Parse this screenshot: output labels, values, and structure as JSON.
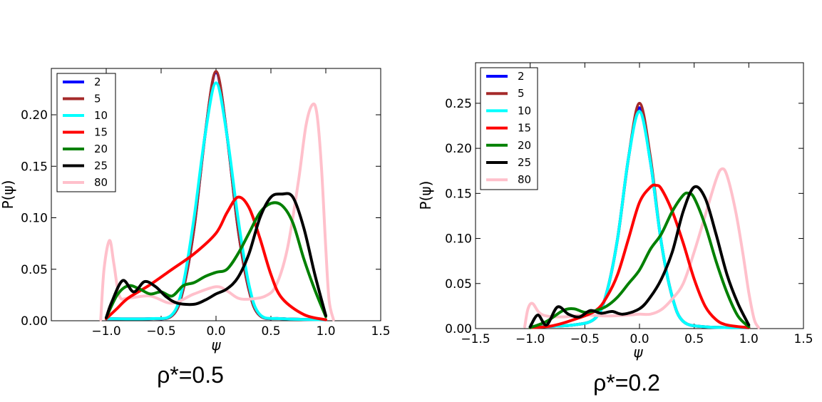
{
  "colors": {
    "2": "#0000ff",
    "5": "#a52a2a",
    "10": "#00ffff",
    "15": "#ff0000",
    "20": "#008000",
    "25": "#000000",
    "80": "#ffc0cb"
  },
  "chart_data": [
    {
      "type": "line",
      "title": "ρ*=0.5",
      "xlabel": "ψ",
      "ylabel": "P(ψ)",
      "xlim": [
        -1.5,
        1.5
      ],
      "ylim": [
        0,
        0.245
      ],
      "xticks": [
        -1.0,
        -0.5,
        0.0,
        0.5,
        1.0,
        1.5
      ],
      "xtick_labels": [
        "−1.0",
        "−0.5",
        "0.0",
        "0.5",
        "1.0",
        "1.5"
      ],
      "yticks": [
        0.0,
        0.05,
        0.1,
        0.15,
        0.2
      ],
      "ytick_labels": [
        "0.00",
        "0.05",
        "0.10",
        "0.15",
        "0.20"
      ],
      "legend": [
        "2",
        "5",
        "10",
        "15",
        "20",
        "25",
        "80"
      ],
      "legend_position": "top-left",
      "series": [
        {
          "name": "2",
          "x": [
            -1.0,
            -0.6,
            -0.4,
            -0.3,
            -0.2,
            -0.1,
            0.0,
            0.1,
            0.2,
            0.3,
            0.4,
            0.6,
            1.0
          ],
          "y": [
            0.002,
            0.002,
            0.005,
            0.03,
            0.09,
            0.18,
            0.241,
            0.18,
            0.09,
            0.03,
            0.005,
            0.002,
            0.001
          ]
        },
        {
          "name": "5",
          "x": [
            -1.0,
            -0.6,
            -0.4,
            -0.3,
            -0.2,
            -0.1,
            0.0,
            0.1,
            0.2,
            0.3,
            0.4,
            0.6,
            1.0
          ],
          "y": [
            0.002,
            0.002,
            0.005,
            0.03,
            0.09,
            0.18,
            0.242,
            0.18,
            0.09,
            0.03,
            0.005,
            0.002,
            0.001
          ]
        },
        {
          "name": "10",
          "x": [
            -1.0,
            -0.6,
            -0.4,
            -0.3,
            -0.2,
            -0.1,
            0.0,
            0.1,
            0.2,
            0.3,
            0.4,
            0.6,
            1.0
          ],
          "y": [
            0.002,
            0.002,
            0.006,
            0.035,
            0.1,
            0.18,
            0.231,
            0.18,
            0.1,
            0.035,
            0.006,
            0.002,
            0.001
          ]
        },
        {
          "name": "15",
          "x": [
            -1.0,
            -0.9,
            -0.8,
            -0.6,
            -0.4,
            -0.2,
            0.0,
            0.1,
            0.2,
            0.3,
            0.4,
            0.5,
            0.6,
            0.8,
            1.0
          ],
          "y": [
            0.002,
            0.012,
            0.022,
            0.035,
            0.05,
            0.065,
            0.085,
            0.105,
            0.12,
            0.11,
            0.08,
            0.045,
            0.022,
            0.006,
            0.001
          ]
        },
        {
          "name": "20",
          "x": [
            -1.0,
            -0.9,
            -0.8,
            -0.7,
            -0.6,
            -0.5,
            -0.4,
            -0.3,
            -0.2,
            -0.1,
            0.0,
            0.1,
            0.2,
            0.3,
            0.4,
            0.5,
            0.6,
            0.7,
            0.8,
            0.9,
            1.0
          ],
          "y": [
            0.003,
            0.025,
            0.034,
            0.031,
            0.026,
            0.028,
            0.024,
            0.034,
            0.037,
            0.043,
            0.047,
            0.05,
            0.065,
            0.085,
            0.105,
            0.114,
            0.112,
            0.095,
            0.06,
            0.03,
            0.004
          ]
        },
        {
          "name": "25",
          "x": [
            -1.0,
            -0.95,
            -0.85,
            -0.75,
            -0.65,
            -0.55,
            -0.45,
            -0.35,
            -0.2,
            -0.1,
            0.0,
            0.1,
            0.2,
            0.3,
            0.4,
            0.5,
            0.6,
            0.7,
            0.8,
            0.9,
            1.0
          ],
          "y": [
            0.003,
            0.018,
            0.039,
            0.028,
            0.038,
            0.033,
            0.023,
            0.017,
            0.016,
            0.02,
            0.026,
            0.031,
            0.042,
            0.065,
            0.1,
            0.12,
            0.123,
            0.12,
            0.09,
            0.045,
            0.005
          ]
        },
        {
          "name": "80",
          "x": [
            -1.05,
            -1.02,
            -0.97,
            -0.93,
            -0.88,
            -0.8,
            -0.6,
            -0.4,
            -0.2,
            0.0,
            0.1,
            0.2,
            0.3,
            0.45,
            0.55,
            0.65,
            0.75,
            0.82,
            0.88,
            0.92,
            0.96,
            1.0,
            1.03,
            1.07
          ],
          "y": [
            0.001,
            0.05,
            0.078,
            0.055,
            0.024,
            0.022,
            0.024,
            0.017,
            0.026,
            0.033,
            0.029,
            0.022,
            0.021,
            0.024,
            0.035,
            0.07,
            0.135,
            0.19,
            0.21,
            0.2,
            0.15,
            0.07,
            0.02,
            0.001
          ]
        }
      ]
    },
    {
      "type": "line",
      "title": "ρ*=0.2",
      "xlabel": "ψ",
      "ylabel": "P(ψ)",
      "xlim": [
        -1.5,
        1.5
      ],
      "ylim": [
        0,
        0.295
      ],
      "xticks": [
        -1.5,
        -1.0,
        -0.5,
        0.0,
        0.5,
        1.0,
        1.5
      ],
      "xtick_labels": [
        "−1.5",
        "−1.0",
        "−0.5",
        "0.0",
        "0.5",
        "1.0",
        "1.5"
      ],
      "yticks": [
        0.0,
        0.05,
        0.1,
        0.15,
        0.2,
        0.25
      ],
      "ytick_labels": [
        "0.00",
        "0.05",
        "0.10",
        "0.15",
        "0.20",
        "0.25"
      ],
      "legend": [
        "2",
        "5",
        "10",
        "15",
        "20",
        "25",
        "80"
      ],
      "legend_position": "top-left",
      "series": [
        {
          "name": "2",
          "x": [
            -1.0,
            -0.6,
            -0.4,
            -0.3,
            -0.2,
            -0.1,
            0.0,
            0.1,
            0.2,
            0.3,
            0.4,
            0.6,
            1.0
          ],
          "y": [
            0.002,
            0.004,
            0.012,
            0.04,
            0.1,
            0.19,
            0.245,
            0.185,
            0.095,
            0.035,
            0.008,
            0.002,
            0.001
          ]
        },
        {
          "name": "5",
          "x": [
            -1.0,
            -0.6,
            -0.4,
            -0.3,
            -0.2,
            -0.1,
            0.0,
            0.1,
            0.2,
            0.3,
            0.4,
            0.6,
            1.0
          ],
          "y": [
            0.002,
            0.004,
            0.012,
            0.04,
            0.1,
            0.19,
            0.25,
            0.19,
            0.095,
            0.035,
            0.008,
            0.002,
            0.001
          ]
        },
        {
          "name": "10",
          "x": [
            -1.0,
            -0.6,
            -0.4,
            -0.3,
            -0.2,
            -0.1,
            0.0,
            0.1,
            0.2,
            0.3,
            0.4,
            0.6,
            1.0
          ],
          "y": [
            0.002,
            0.004,
            0.012,
            0.04,
            0.1,
            0.19,
            0.241,
            0.185,
            0.095,
            0.035,
            0.008,
            0.002,
            0.001
          ]
        },
        {
          "name": "15",
          "x": [
            -1.0,
            -0.8,
            -0.6,
            -0.4,
            -0.3,
            -0.2,
            -0.1,
            0.0,
            0.1,
            0.15,
            0.2,
            0.3,
            0.4,
            0.5,
            0.6,
            0.7,
            0.8,
            1.0
          ],
          "y": [
            0.001,
            0.003,
            0.01,
            0.02,
            0.035,
            0.06,
            0.1,
            0.14,
            0.157,
            0.159,
            0.155,
            0.13,
            0.095,
            0.055,
            0.025,
            0.01,
            0.004,
            0.001
          ]
        },
        {
          "name": "20",
          "x": [
            -1.0,
            -0.85,
            -0.7,
            -0.6,
            -0.5,
            -0.4,
            -0.3,
            -0.2,
            -0.1,
            0.0,
            0.1,
            0.2,
            0.3,
            0.4,
            0.45,
            0.5,
            0.6,
            0.7,
            0.8,
            0.9,
            1.0
          ],
          "y": [
            0.001,
            0.008,
            0.02,
            0.022,
            0.018,
            0.02,
            0.025,
            0.035,
            0.05,
            0.065,
            0.088,
            0.105,
            0.13,
            0.148,
            0.15,
            0.145,
            0.115,
            0.075,
            0.04,
            0.014,
            0.002
          ]
        },
        {
          "name": "25",
          "x": [
            -1.0,
            -0.93,
            -0.85,
            -0.75,
            -0.65,
            -0.55,
            -0.45,
            -0.35,
            -0.25,
            -0.15,
            0.0,
            0.1,
            0.2,
            0.3,
            0.4,
            0.5,
            0.6,
            0.7,
            0.8,
            0.9,
            1.0
          ],
          "y": [
            0.002,
            0.015,
            0.004,
            0.024,
            0.016,
            0.013,
            0.02,
            0.017,
            0.019,
            0.016,
            0.022,
            0.035,
            0.055,
            0.085,
            0.13,
            0.157,
            0.145,
            0.105,
            0.06,
            0.028,
            0.004
          ]
        },
        {
          "name": "80",
          "x": [
            -1.05,
            -1.02,
            -0.98,
            -0.92,
            -0.85,
            -0.7,
            -0.5,
            -0.3,
            -0.1,
            0.0,
            0.1,
            0.2,
            0.3,
            0.4,
            0.5,
            0.6,
            0.7,
            0.75,
            0.8,
            0.88,
            0.95,
            1.0,
            1.05,
            1.09
          ],
          "y": [
            0.002,
            0.022,
            0.028,
            0.018,
            0.014,
            0.013,
            0.015,
            0.014,
            0.015,
            0.016,
            0.016,
            0.021,
            0.033,
            0.05,
            0.085,
            0.125,
            0.165,
            0.177,
            0.17,
            0.13,
            0.08,
            0.04,
            0.01,
            0.001
          ]
        }
      ]
    }
  ]
}
